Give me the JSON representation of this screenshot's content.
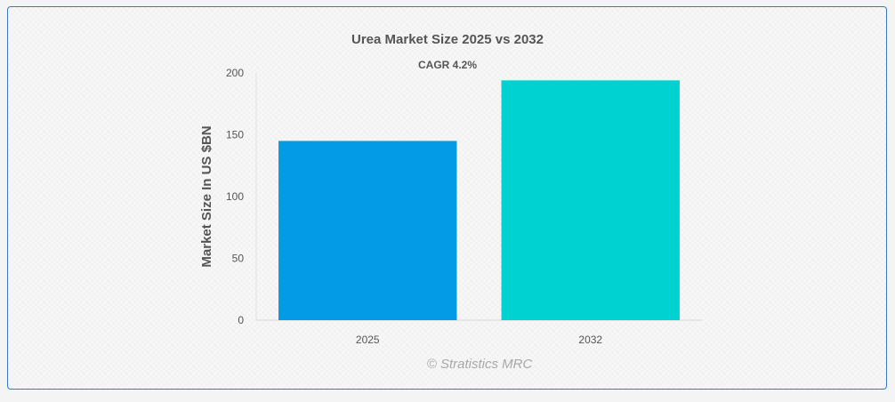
{
  "chart_data": {
    "type": "bar",
    "title": "Urea Market Size 2025 vs 2032",
    "subtitle": "CAGR 4.2%",
    "xlabel": "",
    "ylabel": "Market Size In US $BN",
    "categories": [
      "2025",
      "2032"
    ],
    "values": [
      145,
      194
    ],
    "colors": [
      "#039be5",
      "#00d1d1"
    ],
    "ylim": [
      0,
      200
    ],
    "yticks": [
      0,
      50,
      100,
      150,
      200
    ],
    "grid": false,
    "legend": "none"
  },
  "credit": "© Stratistics MRC"
}
